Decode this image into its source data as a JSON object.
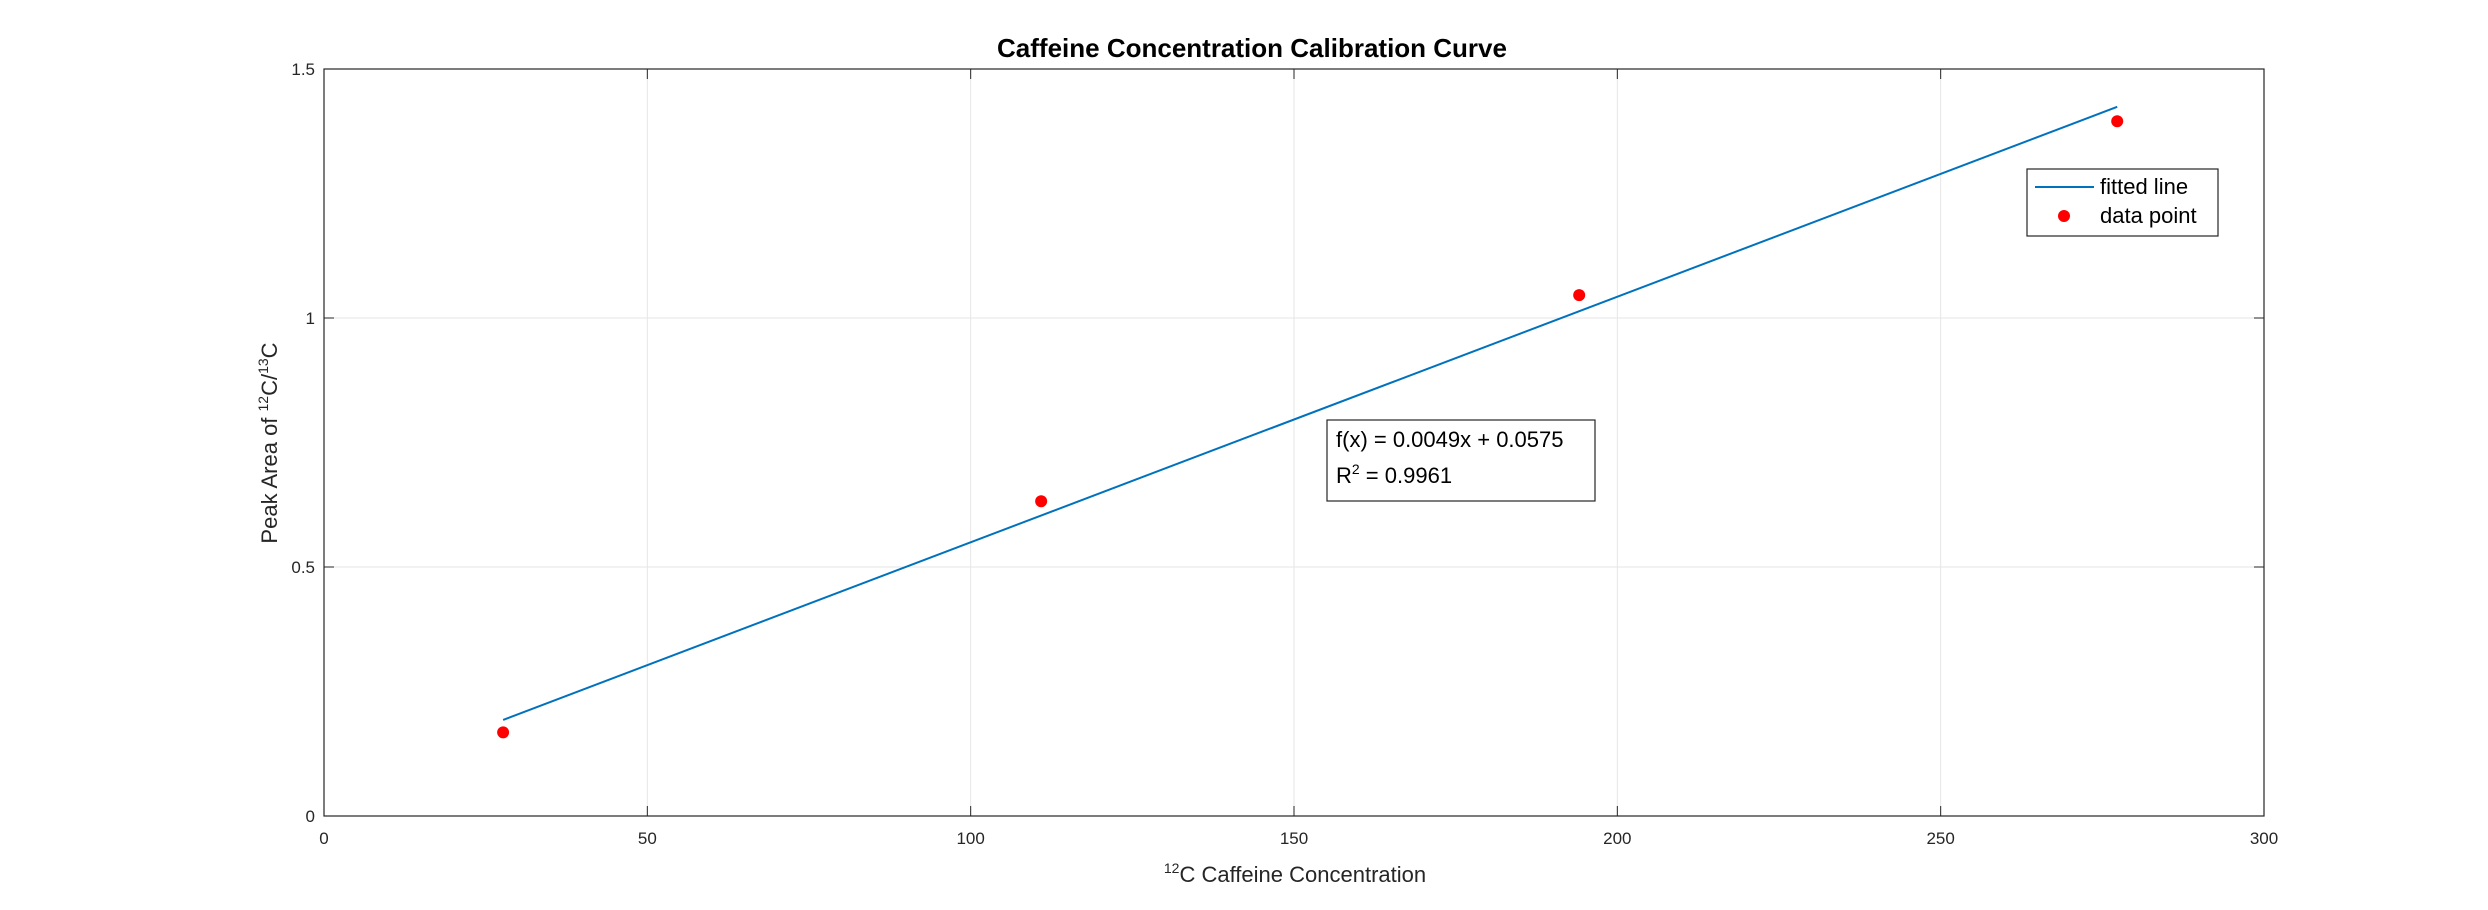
{
  "chart_data": {
    "type": "scatter",
    "title": "Caffeine Concentration Calibration Curve",
    "xlabel": {
      "sup": "12",
      "main": "C Caffeine Concentration"
    },
    "ylabel": {
      "pre": "Peak Area of ",
      "sup1": "12",
      "mid": "C/",
      "sup2": "13",
      "post": "C"
    },
    "xlim": [
      0,
      300
    ],
    "ylim": [
      0,
      1.5
    ],
    "xticks": [
      0,
      50,
      100,
      150,
      200,
      250,
      300
    ],
    "xtick_labels": [
      "0",
      "50",
      "100",
      "150",
      "200",
      "250",
      "300"
    ],
    "yticks": [
      0,
      0.5,
      1,
      1.5
    ],
    "ytick_labels": [
      "0",
      "0.5",
      "1",
      "1.5"
    ],
    "grid": true,
    "legend_position": "top-right",
    "series": [
      {
        "name": "fitted line",
        "kind": "line",
        "color": "#0072BD",
        "x": [
          27.7,
          277.3
        ],
        "y": [
          0.193,
          1.424
        ]
      },
      {
        "name": "data point",
        "kind": "scatter",
        "color": "#FF0000",
        "x": [
          27.7,
          110.9,
          194.1,
          277.3
        ],
        "y": [
          0.168,
          0.632,
          1.046,
          1.395
        ]
      }
    ],
    "annotation": {
      "line1": "f(x) = 0.0049x + 0.0575",
      "line2_pre": "R",
      "line2_sup": "2",
      "line2_post": " = 0.9961"
    }
  }
}
